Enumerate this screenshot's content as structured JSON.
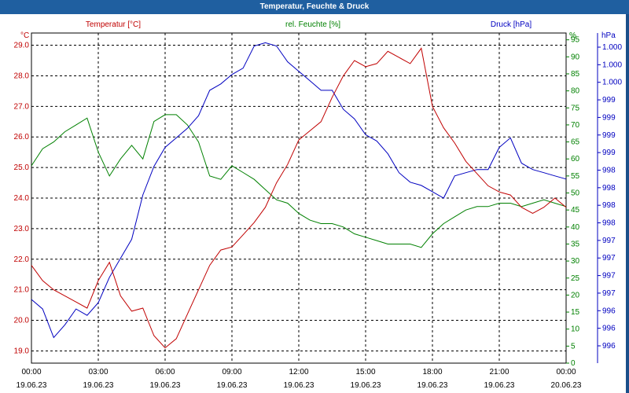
{
  "window": {
    "title": "Temperatur, Feuchte & Druck"
  },
  "colors": {
    "temperature": "#c00000",
    "humidity": "#008000",
    "pressure": "#0000c0",
    "grid": "#000000",
    "title_bar": "#1f5fa0",
    "frame": "#1a4f8a"
  },
  "chart_data": {
    "type": "line",
    "title": "Temperatur, Feuchte & Druck",
    "grid": true,
    "x_ticks": [
      {
        "time": "00:00",
        "date": "19.06.23"
      },
      {
        "time": "03:00",
        "date": "19.06.23"
      },
      {
        "time": "06:00",
        "date": "19.06.23"
      },
      {
        "time": "09:00",
        "date": "19.06.23"
      },
      {
        "time": "12:00",
        "date": "19.06.23"
      },
      {
        "time": "15:00",
        "date": "19.06.23"
      },
      {
        "time": "18:00",
        "date": "19.06.23"
      },
      {
        "time": "21:00",
        "date": "19.06.23"
      },
      {
        "time": "00:00",
        "date": "20.06.23"
      }
    ],
    "xlim": [
      "19.06.23 00:00",
      "20.06.23 00:00"
    ],
    "axes": {
      "temperature": {
        "label": "Temperatur [°C]",
        "unit": "°C",
        "ylim": [
          18.6,
          29.4
        ],
        "ticks": [
          "19.0",
          "20.0",
          "21.0",
          "22.0",
          "23.0",
          "24.0",
          "25.0",
          "26.0",
          "27.0",
          "28.0",
          "29.0"
        ]
      },
      "humidity": {
        "label": "rel. Feuchte [%]",
        "unit": "%",
        "ylim": [
          0,
          97
        ],
        "ticks": [
          "0",
          "5",
          "10",
          "15",
          "20",
          "25",
          "30",
          "35",
          "40",
          "45",
          "50",
          "55",
          "60",
          "65",
          "70",
          "75",
          "80",
          "85",
          "90",
          "95"
        ]
      },
      "pressure": {
        "label": "Druck [hPa]",
        "unit": "hPa",
        "ticks": [
          "996",
          "996",
          "996",
          "997",
          "997",
          "997",
          "997",
          "998",
          "998",
          "998",
          "998",
          "999",
          "999",
          "999",
          "999",
          "1.000",
          "1.000",
          "1.000"
        ]
      }
    },
    "series": [
      {
        "name": "Temperatur [°C]",
        "axis": "temperature",
        "x": [
          "00:00",
          "00:30",
          "01:00",
          "01:30",
          "02:00",
          "02:30",
          "03:00",
          "03:30",
          "04:00",
          "04:30",
          "05:00",
          "05:30",
          "06:00",
          "06:30",
          "07:00",
          "07:30",
          "08:00",
          "08:30",
          "09:00",
          "09:30",
          "10:00",
          "10:30",
          "11:00",
          "11:30",
          "12:00",
          "12:30",
          "13:00",
          "13:30",
          "14:00",
          "14:30",
          "15:00",
          "15:30",
          "16:00",
          "16:30",
          "17:00",
          "17:30",
          "18:00",
          "18:30",
          "19:00",
          "19:30",
          "20:00",
          "20:30",
          "21:00",
          "21:30",
          "22:00",
          "22:30",
          "23:00",
          "23:30",
          "24:00"
        ],
        "values": [
          21.8,
          21.3,
          21.0,
          20.8,
          20.6,
          20.4,
          21.3,
          21.9,
          20.8,
          20.3,
          20.4,
          19.5,
          19.1,
          19.4,
          20.2,
          21.0,
          21.8,
          22.3,
          22.4,
          22.8,
          23.2,
          23.7,
          24.5,
          25.1,
          25.9,
          26.2,
          26.5,
          27.3,
          28.0,
          28.5,
          28.3,
          28.4,
          28.8,
          28.6,
          28.4,
          28.9,
          27.0,
          26.3,
          25.8,
          25.2,
          24.8,
          24.4,
          24.2,
          24.1,
          23.7,
          23.5,
          23.7,
          24.0,
          23.7
        ]
      },
      {
        "name": "rel. Feuchte [%]",
        "axis": "humidity",
        "x": [
          "00:00",
          "00:30",
          "01:00",
          "01:30",
          "02:00",
          "02:30",
          "03:00",
          "03:30",
          "04:00",
          "04:30",
          "05:00",
          "05:30",
          "06:00",
          "06:30",
          "07:00",
          "07:30",
          "08:00",
          "08:30",
          "09:00",
          "09:30",
          "10:00",
          "10:30",
          "11:00",
          "11:30",
          "12:00",
          "12:30",
          "13:00",
          "13:30",
          "14:00",
          "14:30",
          "15:00",
          "15:30",
          "16:00",
          "16:30",
          "17:00",
          "17:30",
          "18:00",
          "18:30",
          "19:00",
          "19:30",
          "20:00",
          "20:30",
          "21:00",
          "21:30",
          "22:00",
          "22:30",
          "23:00",
          "23:30",
          "24:00"
        ],
        "values": [
          58,
          63,
          65,
          68,
          70,
          72,
          62,
          55,
          60,
          64,
          60,
          71,
          73,
          73,
          70,
          65,
          55,
          54,
          58,
          56,
          54,
          51,
          48,
          47,
          44,
          42,
          41,
          41,
          40,
          38,
          37,
          36,
          35,
          35,
          35,
          34,
          38,
          41,
          43,
          45,
          46,
          46,
          47,
          47,
          46,
          47,
          48,
          47,
          46
        ]
      },
      {
        "name": "Druck [hPa]",
        "axis": "pressure",
        "x": [
          "00:00",
          "00:30",
          "01:00",
          "01:30",
          "02:00",
          "02:30",
          "03:00",
          "03:30",
          "04:00",
          "04:30",
          "05:00",
          "05:30",
          "06:00",
          "06:30",
          "07:00",
          "07:30",
          "08:00",
          "08:30",
          "09:00",
          "09:30",
          "10:00",
          "10:30",
          "11:00",
          "11:30",
          "12:00",
          "12:30",
          "13:00",
          "13:30",
          "14:00",
          "14:30",
          "15:00",
          "15:30",
          "16:00",
          "16:30",
          "17:00",
          "17:30",
          "18:00",
          "18:30",
          "19:00",
          "19:30",
          "20:00",
          "20:30",
          "21:00",
          "21:30",
          "22:00",
          "22:30",
          "23:00",
          "23:30",
          "24:00"
        ],
        "values_hpa_pos": [
          0.18,
          0.15,
          0.06,
          0.1,
          0.15,
          0.13,
          0.17,
          0.25,
          0.31,
          0.37,
          0.51,
          0.6,
          0.66,
          0.69,
          0.72,
          0.76,
          0.84,
          0.86,
          0.89,
          0.91,
          0.98,
          0.99,
          0.98,
          0.93,
          0.9,
          0.87,
          0.84,
          0.84,
          0.78,
          0.75,
          0.7,
          0.68,
          0.64,
          0.58,
          0.55,
          0.54,
          0.52,
          0.5,
          0.57,
          0.58,
          0.59,
          0.59,
          0.66,
          0.69,
          0.61,
          0.59,
          0.58,
          0.57,
          0.56
        ]
      }
    ]
  }
}
